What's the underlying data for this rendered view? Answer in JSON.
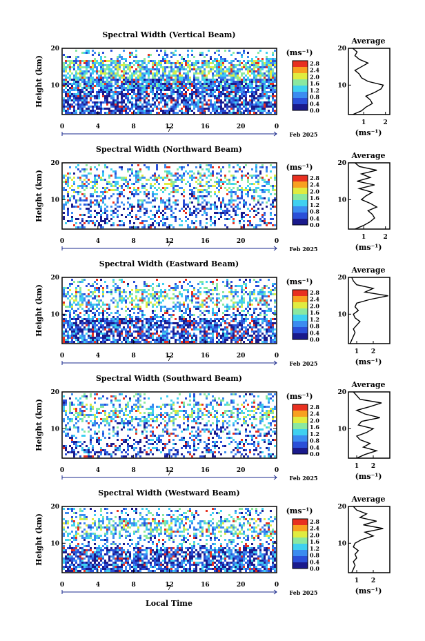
{
  "colorbar": {
    "unit_label": "(ms⁻¹)",
    "ticks": [
      "2.8",
      "2.4",
      "2.0",
      "1.6",
      "1.2",
      "0.8",
      "0.4",
      "0.0"
    ],
    "colors": [
      "#1a1a8c",
      "#2a4fd8",
      "#3b8cf0",
      "#3fd0f0",
      "#8ae8a0",
      "#e0ec40",
      "#f8a020",
      "#e83020"
    ]
  },
  "shared": {
    "x_ticks": [
      "0",
      "4",
      "8",
      "12",
      "16",
      "20",
      "0"
    ],
    "y_ticks": [
      "20",
      "10"
    ],
    "ylabel": "Height (km)",
    "date_day": "7",
    "date_label": "Feb 2025",
    "avg_title": "Average",
    "avg_xlabel": "(ms⁻¹)",
    "xlabel": "Local Time"
  },
  "chart_data": [
    {
      "type": "heatmap",
      "title": "Spectral Width (Vertical Beam)",
      "xlim": [
        0,
        24
      ],
      "ylim": [
        2,
        20
      ],
      "avg": {
        "xticks": [
          "1",
          "2"
        ],
        "xlim": [
          0.3,
          2.2
        ],
        "profile": [
          [
            2,
            0.5
          ],
          [
            3,
            0.9
          ],
          [
            4,
            1.1
          ],
          [
            5,
            1.4
          ],
          [
            6,
            1.3
          ],
          [
            7,
            1.1
          ],
          [
            8,
            1.5
          ],
          [
            9,
            1.8
          ],
          [
            10,
            1.9
          ],
          [
            11,
            1.2
          ],
          [
            12,
            0.9
          ],
          [
            13,
            0.8
          ],
          [
            14,
            0.6
          ],
          [
            15,
            0.9
          ],
          [
            16,
            1.2
          ],
          [
            17,
            0.8
          ],
          [
            18,
            0.6
          ],
          [
            19,
            0.7
          ],
          [
            20,
            0.5
          ]
        ]
      }
    },
    {
      "type": "heatmap",
      "title": "Spectral Width (Northward Beam)",
      "xlim": [
        0,
        24
      ],
      "ylim": [
        2,
        20
      ],
      "avg": {
        "xticks": [
          "1",
          "2"
        ],
        "xlim": [
          0.3,
          2.2
        ],
        "profile": [
          [
            2,
            0.6
          ],
          [
            3,
            1.0
          ],
          [
            4,
            1.3
          ],
          [
            5,
            1.5
          ],
          [
            6,
            1.4
          ],
          [
            7,
            1.2
          ],
          [
            8,
            1.6
          ],
          [
            9,
            1.3
          ],
          [
            10,
            0.9
          ],
          [
            11,
            1.1
          ],
          [
            12,
            1.4
          ],
          [
            13,
            0.8
          ],
          [
            14,
            1.5
          ],
          [
            15,
            0.7
          ],
          [
            16,
            1.3
          ],
          [
            17,
            0.9
          ],
          [
            18,
            1.6
          ],
          [
            19,
            0.8
          ],
          [
            20,
            0.6
          ]
        ]
      }
    },
    {
      "type": "heatmap",
      "title": "Spectral Width (Eastward Beam)",
      "xlim": [
        0,
        24
      ],
      "ylim": [
        2,
        20
      ],
      "avg": {
        "xticks": [
          "1",
          "2"
        ],
        "xlim": [
          0.5,
          3.0
        ],
        "profile": [
          [
            2,
            0.6
          ],
          [
            3,
            0.7
          ],
          [
            4,
            0.8
          ],
          [
            5,
            0.9
          ],
          [
            6,
            0.8
          ],
          [
            7,
            1.0
          ],
          [
            8,
            1.2
          ],
          [
            9,
            0.9
          ],
          [
            10,
            0.8
          ],
          [
            11,
            1.1
          ],
          [
            12,
            0.9
          ],
          [
            13,
            1.0
          ],
          [
            14,
            1.8
          ],
          [
            15,
            2.9
          ],
          [
            16,
            1.5
          ],
          [
            17,
            2.0
          ],
          [
            18,
            1.0
          ],
          [
            19,
            0.8
          ],
          [
            20,
            0.7
          ]
        ]
      }
    },
    {
      "type": "heatmap",
      "title": "Spectral Width (Southward Beam)",
      "xlim": [
        0,
        24
      ],
      "ylim": [
        2,
        20
      ],
      "avg": {
        "xticks": [
          "1",
          "2"
        ],
        "xlim": [
          0.5,
          3.0
        ],
        "profile": [
          [
            2,
            1.0
          ],
          [
            3,
            1.5
          ],
          [
            4,
            2.2
          ],
          [
            5,
            1.4
          ],
          [
            6,
            1.8
          ],
          [
            7,
            1.2
          ],
          [
            8,
            1.0
          ],
          [
            9,
            1.6
          ],
          [
            10,
            2.0
          ],
          [
            11,
            1.1
          ],
          [
            12,
            1.3
          ],
          [
            13,
            2.4
          ],
          [
            14,
            1.5
          ],
          [
            15,
            1.0
          ],
          [
            16,
            1.8
          ],
          [
            17,
            2.5
          ],
          [
            18,
            1.2
          ],
          [
            19,
            1.0
          ],
          [
            20,
            0.8
          ]
        ]
      }
    },
    {
      "type": "heatmap",
      "title": "Spectral Width (Westward Beam)",
      "xlim": [
        0,
        24
      ],
      "ylim": [
        2,
        20
      ],
      "avg": {
        "xticks": [
          "1",
          "2"
        ],
        "xlim": [
          0.5,
          3.0
        ],
        "profile": [
          [
            2,
            0.7
          ],
          [
            3,
            0.8
          ],
          [
            4,
            0.9
          ],
          [
            5,
            0.8
          ],
          [
            6,
            1.0
          ],
          [
            7,
            0.9
          ],
          [
            8,
            1.1
          ],
          [
            9,
            0.8
          ],
          [
            10,
            0.9
          ],
          [
            11,
            1.3
          ],
          [
            12,
            2.0
          ],
          [
            13,
            1.5
          ],
          [
            14,
            2.6
          ],
          [
            15,
            1.4
          ],
          [
            16,
            2.2
          ],
          [
            17,
            1.2
          ],
          [
            18,
            1.6
          ],
          [
            19,
            1.0
          ],
          [
            20,
            0.8
          ]
        ]
      }
    }
  ]
}
